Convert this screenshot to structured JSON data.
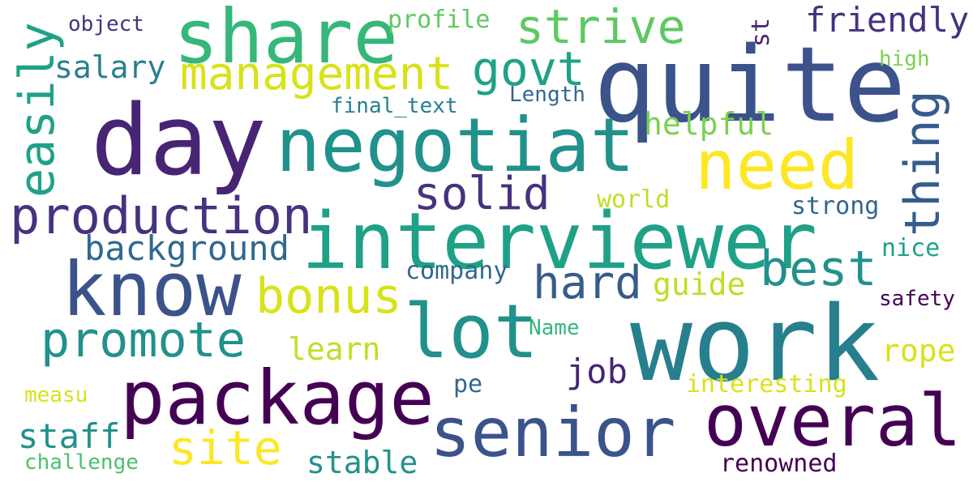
{
  "words": {
    "quite": "quite",
    "work": "work",
    "day": "day",
    "interviewer": "interviewer",
    "negotiat": "negotiat",
    "know": "know",
    "share": "share",
    "package": "package",
    "senior": "senior",
    "overal": "overal",
    "lot": "lot",
    "need": "need",
    "management": "management",
    "production": "production",
    "easily": "easily",
    "promote": "promote",
    "strive": "strive",
    "govt": "govt",
    "solid": "solid",
    "thing": "thing",
    "hard": "hard",
    "best": "best",
    "bonus": "bonus",
    "site": "site",
    "background": "background",
    "friendly": "friendly",
    "salary": "salary",
    "helpful": "helpful",
    "staff": "staff",
    "stable": "stable",
    "job": "job",
    "guide": "guide",
    "rope": "rope",
    "learn": "learn",
    "interesting": "interesting",
    "renowned": "renowned",
    "company": "company",
    "strong": "strong",
    "profile": "profile",
    "world": "world",
    "nice": "nice",
    "challenge": "challenge",
    "safety": "safety",
    "high": "high",
    "object": "object",
    "final_text": "final_text",
    "length": "Length",
    "name": "Name",
    "measu": "measu",
    "pe": "pe",
    "st": "st"
  },
  "palette": {
    "background": "#ffffff",
    "scheme": "viridis",
    "purple": "#440154",
    "blue": "#3b528b",
    "teal": "#21918c",
    "green": "#5ec962",
    "yellow": "#fde725"
  }
}
